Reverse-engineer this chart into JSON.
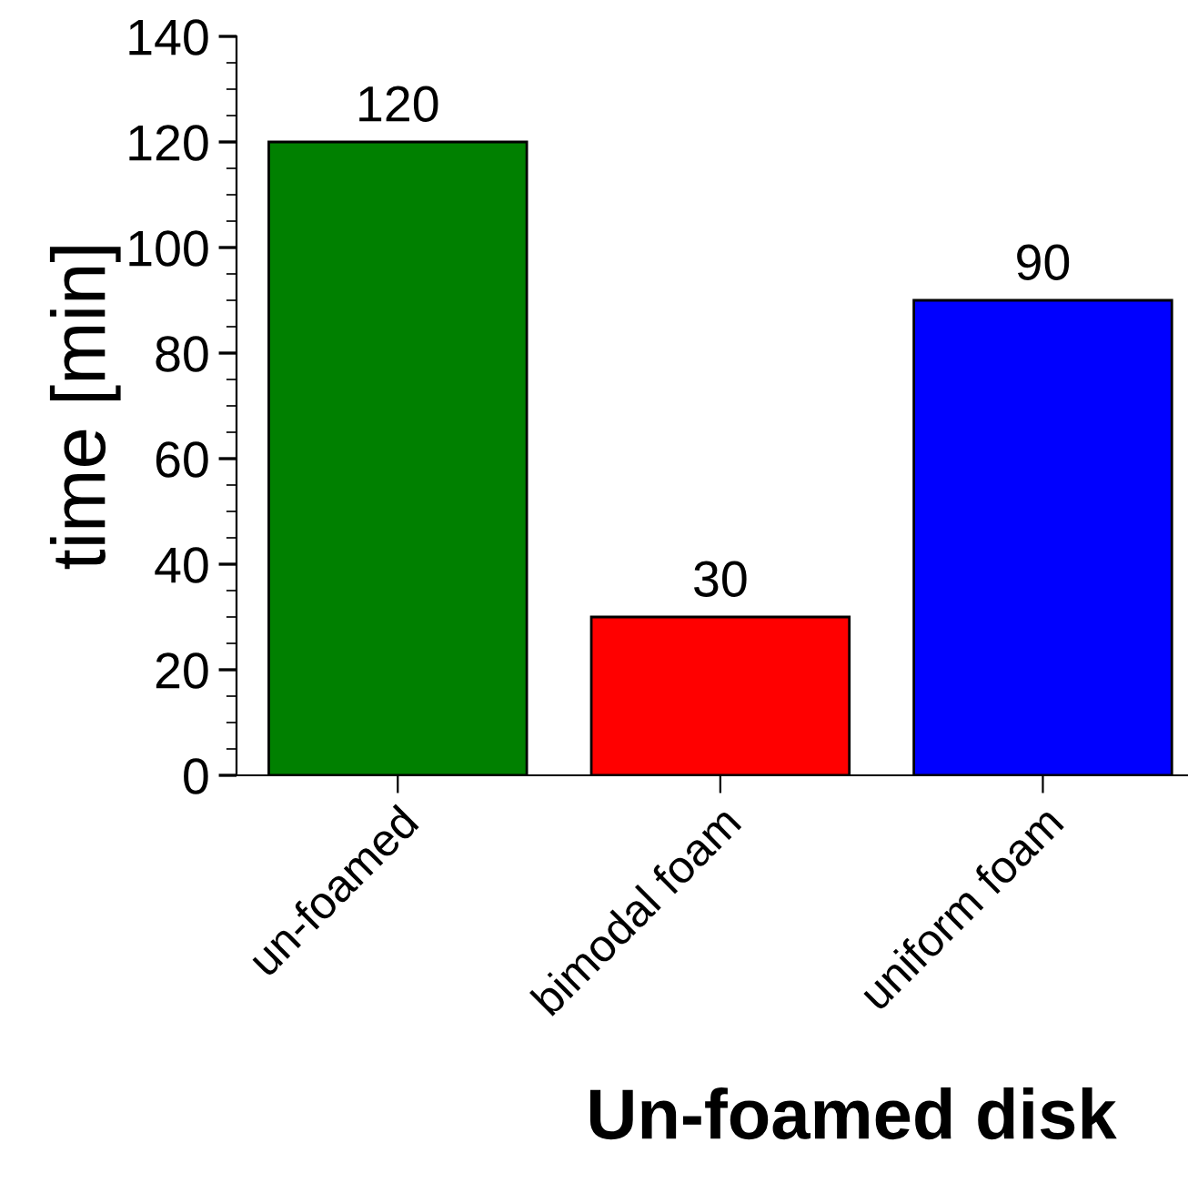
{
  "chart_data": {
    "type": "bar",
    "xlabel": "Un-foamed disk",
    "ylabel": "time [min]",
    "categories": [
      "un-foamed",
      "bimodal foam",
      "uniform foam"
    ],
    "values": [
      120,
      30,
      90
    ],
    "colors": [
      "#008000",
      "#ff0000",
      "#0000ff"
    ],
    "ylim": [
      0,
      140
    ],
    "yticks": [
      0,
      20,
      40,
      60,
      80,
      100,
      120,
      140
    ],
    "data_labels": true,
    "grid": false,
    "legend": false
  }
}
